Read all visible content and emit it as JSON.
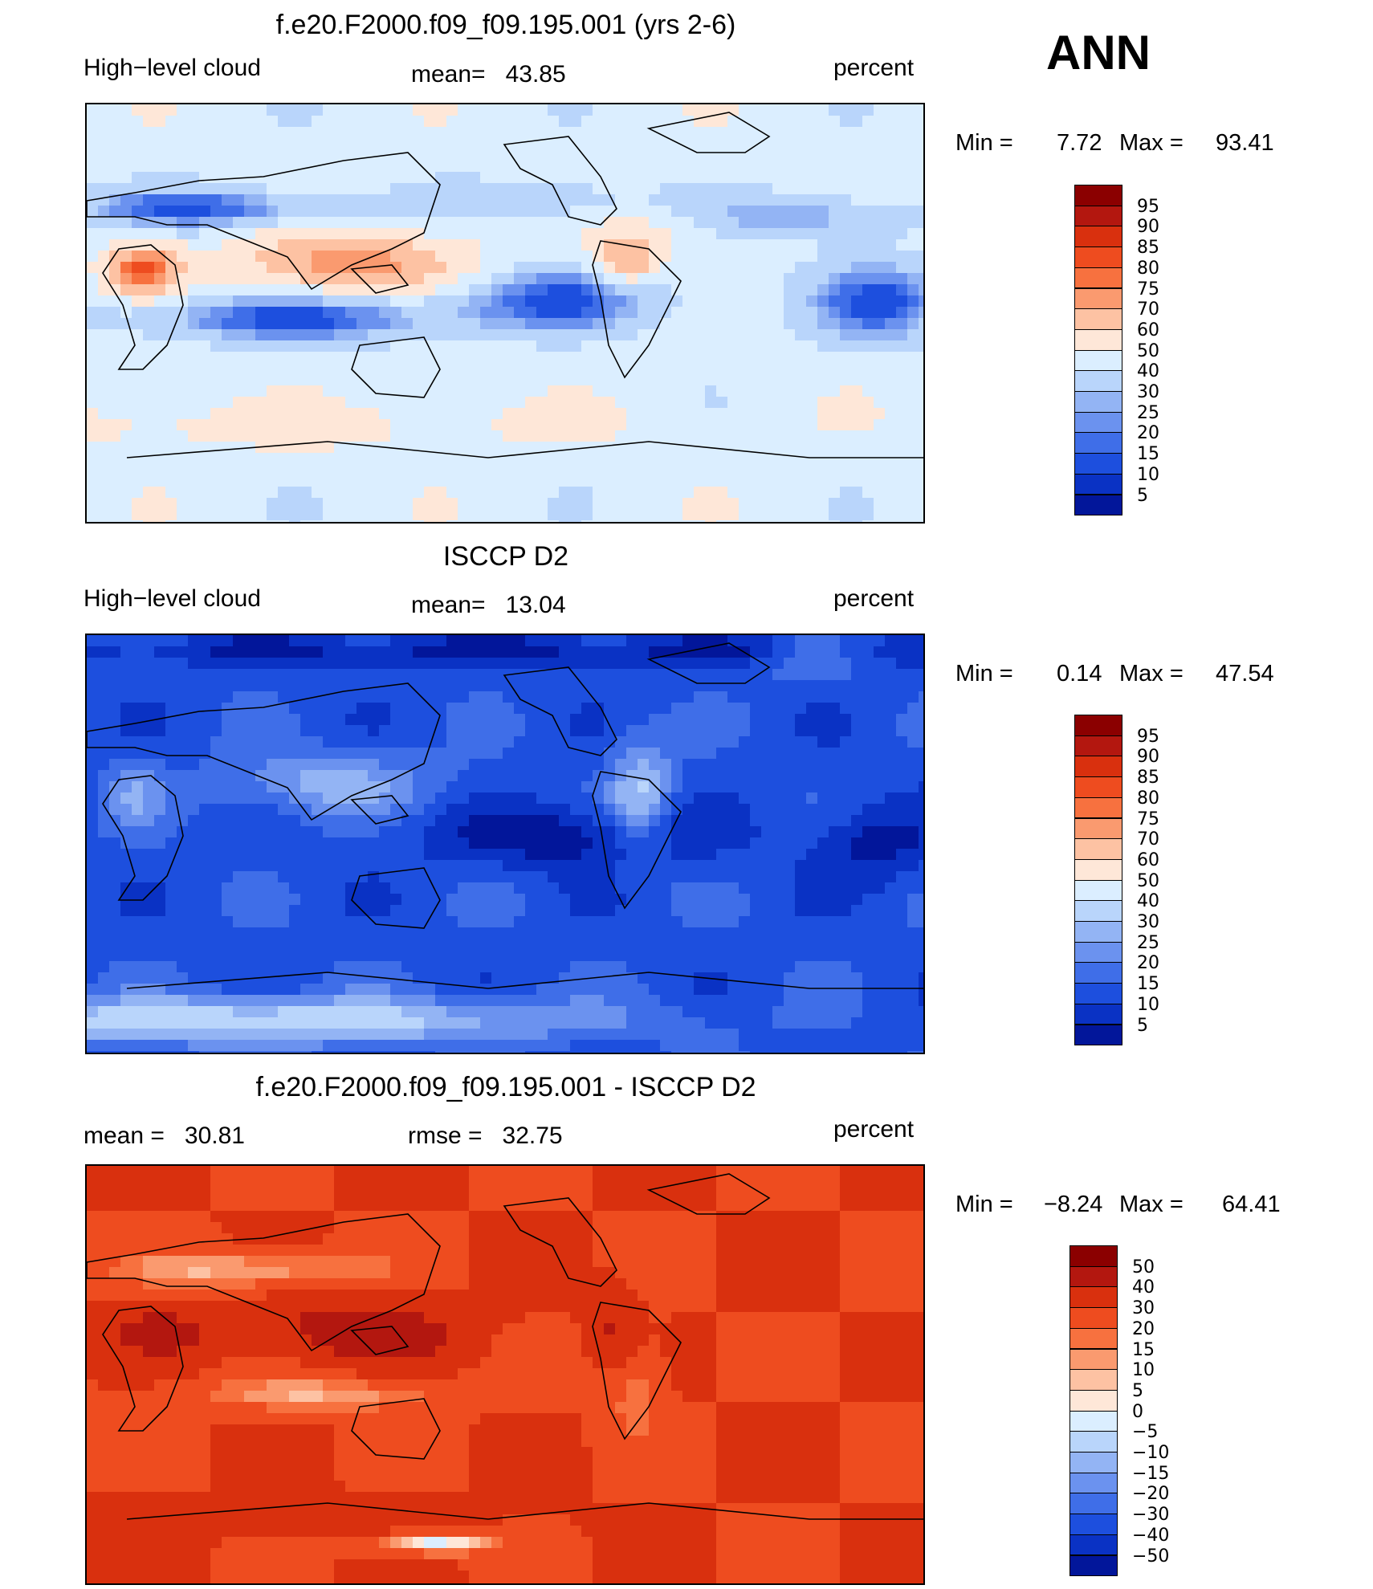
{
  "season": "ANN",
  "panels": [
    {
      "title": "f.e20.F2000.f09_f09.195.001 (yrs 2-6)",
      "left_label": "High−level cloud",
      "mid_label": "mean=   43.85",
      "right_label": "percent",
      "min_label": "Min =",
      "min_value": "7.72",
      "max_label": "Max =",
      "max_value": "93.41",
      "pattern": "model"
    },
    {
      "title": "ISCCP D2",
      "left_label": "High−level cloud",
      "mid_label": "mean=   13.04",
      "right_label": "percent",
      "min_label": "Min =",
      "min_value": "0.14",
      "max_label": "Max =",
      "max_value": "47.54",
      "pattern": "obs"
    },
    {
      "title": "f.e20.F2000.f09_f09.195.001 - ISCCP D2",
      "left_label": "mean =   30.81",
      "mid_label": "rmse =   32.75",
      "right_label": "percent",
      "min_label": "Min =",
      "min_value": "−8.24",
      "max_label": "Max =",
      "max_value": "64.41",
      "pattern": "diff"
    }
  ],
  "colorbar_colors": [
    "#8b0000",
    "#b3170f",
    "#d9300e",
    "#ee4c1f",
    "#f7713f",
    "#fa9a6f",
    "#fdc2a3",
    "#fee7d8",
    "#dbeeff",
    "#b9d5fb",
    "#93b4f4",
    "#6b92ef",
    "#3f6ee8",
    "#1d4fde",
    "#0a32c4",
    "#02169a"
  ],
  "colorbar_labels_abs": [
    "95",
    "90",
    "85",
    "80",
    "75",
    "70",
    "60",
    "50",
    "40",
    "30",
    "25",
    "20",
    "15",
    "10",
    "5"
  ],
  "colorbar_labels_diff": [
    "50",
    "40",
    "30",
    "20",
    "15",
    "10",
    "5",
    "0",
    "−5",
    "−10",
    "−15",
    "−20",
    "−30",
    "−40",
    "−50"
  ],
  "chart_data": [
    {
      "type": "heatmap",
      "title": "f.e20.F2000.f09_f09.195.001 (yrs 2-6)",
      "variable": "High-level cloud",
      "units": "percent",
      "season": "ANN",
      "mean": 43.85,
      "min": 7.72,
      "max": 93.41,
      "contour_levels": [
        5,
        10,
        15,
        20,
        25,
        30,
        40,
        50,
        60,
        70,
        75,
        80,
        85,
        90,
        95
      ]
    },
    {
      "type": "heatmap",
      "title": "ISCCP D2",
      "variable": "High-level cloud",
      "units": "percent",
      "season": "ANN",
      "mean": 13.04,
      "min": 0.14,
      "max": 47.54,
      "contour_levels": [
        5,
        10,
        15,
        20,
        25,
        30,
        40,
        50,
        60,
        70,
        75,
        80,
        85,
        90,
        95
      ]
    },
    {
      "type": "heatmap",
      "title": "f.e20.F2000.f09_f09.195.001 - ISCCP D2",
      "units": "percent",
      "season": "ANN",
      "mean": 30.81,
      "rmse": 32.75,
      "min": -8.24,
      "max": 64.41,
      "contour_levels": [
        -50,
        -40,
        -30,
        -20,
        -15,
        -10,
        -5,
        0,
        5,
        10,
        15,
        20,
        30,
        40,
        50
      ]
    }
  ]
}
